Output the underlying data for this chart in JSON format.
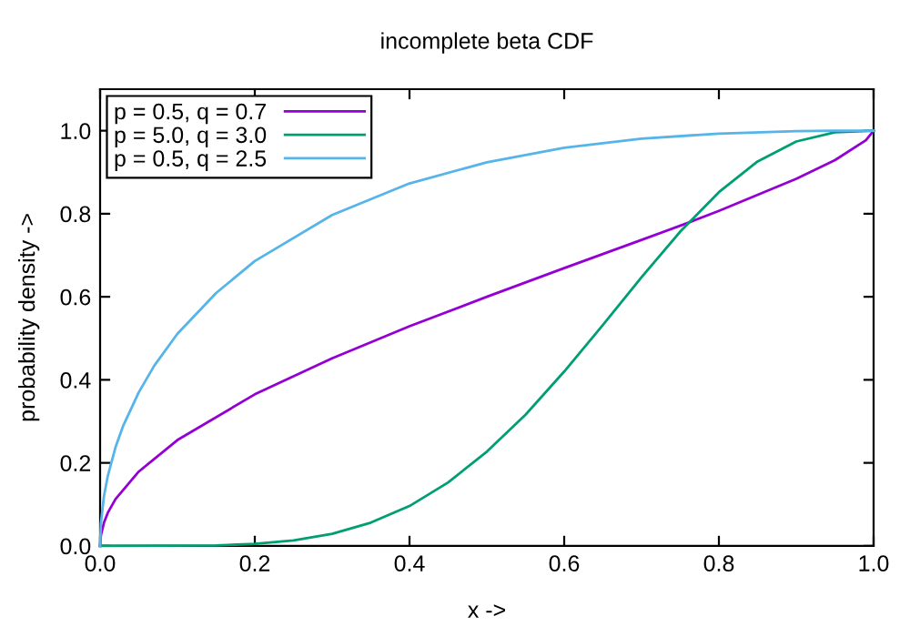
{
  "chart_data": {
    "type": "line",
    "title": "incomplete beta CDF",
    "xlabel": "x ->",
    "ylabel": "probability density ->",
    "xlim": [
      0,
      1
    ],
    "ylim": [
      0,
      1.1
    ],
    "xticks": [
      {
        "value": 0,
        "label": "0.0"
      },
      {
        "value": 0.2,
        "label": "0.2"
      },
      {
        "value": 0.4,
        "label": "0.4"
      },
      {
        "value": 0.6,
        "label": "0.6"
      },
      {
        "value": 0.8,
        "label": "0.8"
      },
      {
        "value": 1,
        "label": "1.0"
      }
    ],
    "yticks": [
      {
        "value": 0,
        "label": "0.0"
      },
      {
        "value": 0.2,
        "label": "0.2"
      },
      {
        "value": 0.4,
        "label": "0.4"
      },
      {
        "value": 0.6,
        "label": "0.6"
      },
      {
        "value": 0.8,
        "label": "0.8"
      },
      {
        "value": 1,
        "label": "1.0"
      }
    ],
    "grid": false,
    "legend": "top left",
    "marker": "none",
    "line_style": "solid",
    "series": [
      {
        "name": "p = 0.5, q = 0.7",
        "color": "#9400d3",
        "x": [
          0,
          0.001,
          0.005,
          0.01,
          0.02,
          0.05,
          0.1,
          0.2,
          0.3,
          0.4,
          0.5,
          0.6,
          0.7,
          0.76,
          0.8,
          0.9,
          0.95,
          0.99,
          1
        ],
        "values": [
          0,
          0.025,
          0.056,
          0.08,
          0.113,
          0.179,
          0.255,
          0.365,
          0.452,
          0.529,
          0.6,
          0.669,
          0.737,
          0.778,
          0.807,
          0.884,
          0.929,
          0.977,
          1
        ]
      },
      {
        "name": "p = 5.0, q = 3.0",
        "color": "#009e73",
        "x": [
          0,
          0.15,
          0.2,
          0.25,
          0.3,
          0.35,
          0.4,
          0.45,
          0.5,
          0.55,
          0.6,
          0.65,
          0.7,
          0.75,
          0.8,
          0.85,
          0.9,
          0.95,
          1
        ],
        "values": [
          0,
          0.001,
          0.005,
          0.013,
          0.029,
          0.056,
          0.096,
          0.153,
          0.227,
          0.316,
          0.42,
          0.532,
          0.647,
          0.757,
          0.852,
          0.926,
          0.974,
          0.996,
          1
        ]
      },
      {
        "name": "p = 0.5, q = 2.5",
        "color": "#56b4e9",
        "x": [
          0,
          0.001,
          0.005,
          0.01,
          0.02,
          0.03,
          0.05,
          0.07,
          0.1,
          0.15,
          0.2,
          0.3,
          0.4,
          0.5,
          0.6,
          0.7,
          0.8,
          0.9,
          0.95,
          1
        ],
        "values": [
          0,
          0.054,
          0.12,
          0.169,
          0.238,
          0.29,
          0.37,
          0.434,
          0.511,
          0.609,
          0.686,
          0.797,
          0.873,
          0.924,
          0.959,
          0.981,
          0.993,
          0.999,
          1.0,
          1
        ]
      }
    ]
  }
}
